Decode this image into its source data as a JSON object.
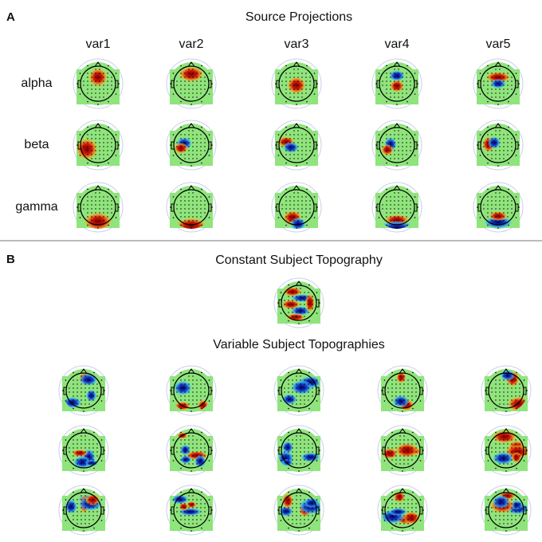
{
  "panel_a": {
    "label": "A",
    "title": "Source Projections",
    "columns": [
      "var1",
      "var2",
      "var3",
      "var4",
      "var5"
    ],
    "rows": [
      "alpha",
      "beta",
      "gamma"
    ]
  },
  "panel_b": {
    "label": "B",
    "constant_title": "Constant Subject Topography",
    "variable_title": "Variable Subject Topographies"
  }
}
